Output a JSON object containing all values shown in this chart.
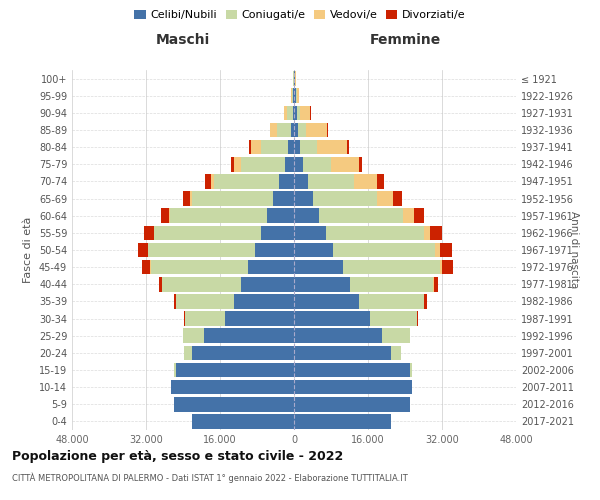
{
  "age_groups": [
    "0-4",
    "5-9",
    "10-14",
    "15-19",
    "20-24",
    "25-29",
    "30-34",
    "35-39",
    "40-44",
    "45-49",
    "50-54",
    "55-59",
    "60-64",
    "65-69",
    "70-74",
    "75-79",
    "80-84",
    "85-89",
    "90-94",
    "95-99",
    "100+"
  ],
  "birth_years": [
    "2017-2021",
    "2012-2016",
    "2007-2011",
    "2002-2006",
    "1997-2001",
    "1992-1996",
    "1987-1991",
    "1982-1986",
    "1977-1981",
    "1972-1976",
    "1967-1971",
    "1962-1966",
    "1957-1961",
    "1952-1956",
    "1947-1951",
    "1942-1946",
    "1937-1941",
    "1932-1936",
    "1927-1931",
    "1922-1926",
    "≤ 1921"
  ],
  "male": {
    "celibi": [
      22000,
      26000,
      26500,
      25500,
      22000,
      19500,
      15000,
      13000,
      11500,
      10000,
      8500,
      7200,
      5800,
      4500,
      3200,
      2000,
      1200,
      600,
      300,
      150,
      80
    ],
    "coniugati": [
      20,
      50,
      100,
      500,
      1800,
      4500,
      8500,
      12500,
      17000,
      21000,
      23000,
      23000,
      21000,
      17500,
      14000,
      9500,
      6000,
      3000,
      1200,
      350,
      100
    ],
    "vedovi": [
      0,
      0,
      1,
      2,
      5,
      10,
      20,
      30,
      40,
      60,
      80,
      100,
      200,
      400,
      800,
      1500,
      2200,
      1500,
      700,
      200,
      50
    ],
    "divorziati": [
      0,
      2,
      5,
      10,
      30,
      80,
      200,
      500,
      700,
      1800,
      2200,
      2200,
      1800,
      1500,
      1200,
      600,
      400,
      150,
      60,
      30,
      10
    ]
  },
  "female": {
    "nubili": [
      21000,
      25000,
      25500,
      25000,
      21000,
      19000,
      16500,
      14000,
      12000,
      10500,
      8500,
      7000,
      5500,
      4000,
      3000,
      2000,
      1400,
      900,
      600,
      350,
      200
    ],
    "coniugate": [
      10,
      30,
      100,
      600,
      2200,
      6000,
      10000,
      14000,
      18000,
      21000,
      22000,
      21000,
      18000,
      14000,
      10000,
      6000,
      3500,
      1800,
      700,
      200,
      80
    ],
    "vedove": [
      0,
      0,
      1,
      3,
      10,
      30,
      80,
      150,
      300,
      600,
      1000,
      1500,
      2500,
      3500,
      5000,
      6000,
      6500,
      4500,
      2200,
      600,
      150
    ],
    "divorziate": [
      0,
      1,
      3,
      10,
      30,
      100,
      250,
      500,
      800,
      2200,
      2600,
      2500,
      2200,
      1800,
      1400,
      800,
      500,
      200,
      80,
      30,
      10
    ]
  },
  "colors": {
    "celibi": "#4472a8",
    "coniugati": "#c8d9a5",
    "vedovi": "#f5ca80",
    "divorziati": "#cc2200"
  },
  "xlim": 48000,
  "xlabel_left": "Maschi",
  "xlabel_right": "Femmine",
  "ylabel_left": "Fasce di età",
  "ylabel_right": "Anni di nascita",
  "title": "Popolazione per età, sesso e stato civile - 2022",
  "subtitle": "CITTÀ METROPOLITANA DI PALERMO - Dati ISTAT 1° gennaio 2022 - Elaborazione TUTTITALIA.IT",
  "legend_labels": [
    "Celibi/Nubili",
    "Coniugati/e",
    "Vedovi/e",
    "Divorziati/e"
  ],
  "background_color": "#ffffff",
  "grid_color": "#cccccc"
}
